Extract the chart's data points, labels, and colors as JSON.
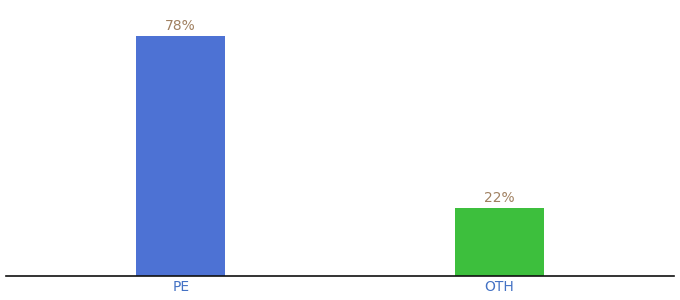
{
  "categories": [
    "PE",
    "OTH"
  ],
  "values": [
    78,
    22
  ],
  "bar_colors": [
    "#4d72d4",
    "#3dbf3d"
  ],
  "value_labels": [
    "78%",
    "22%"
  ],
  "label_color": "#a08060",
  "xlabel_color": "#4472c4",
  "background_color": "#ffffff",
  "ylim": [
    0,
    88
  ],
  "bar_width": 0.28,
  "label_fontsize": 10,
  "tick_fontsize": 10,
  "spine_color": "#111111",
  "x_positions": [
    0,
    1
  ]
}
